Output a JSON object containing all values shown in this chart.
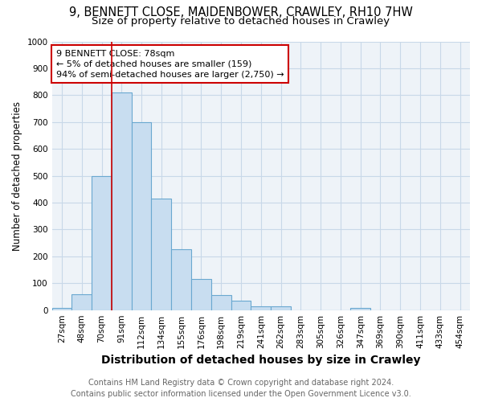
{
  "title_line1": "9, BENNETT CLOSE, MAIDENBOWER, CRAWLEY, RH10 7HW",
  "title_line2": "Size of property relative to detached houses in Crawley",
  "xlabel": "Distribution of detached houses by size in Crawley",
  "ylabel": "Number of detached properties",
  "categories": [
    "27sqm",
    "48sqm",
    "70sqm",
    "91sqm",
    "112sqm",
    "134sqm",
    "155sqm",
    "176sqm",
    "198sqm",
    "219sqm",
    "241sqm",
    "262sqm",
    "283sqm",
    "305sqm",
    "326sqm",
    "347sqm",
    "369sqm",
    "390sqm",
    "411sqm",
    "433sqm",
    "454sqm"
  ],
  "values": [
    8,
    58,
    500,
    810,
    700,
    415,
    225,
    115,
    57,
    35,
    15,
    15,
    0,
    0,
    0,
    8,
    0,
    0,
    0,
    0,
    0
  ],
  "bar_color": "#c8ddf0",
  "bar_edge_color": "#6aa8d0",
  "vline_x_index": 2,
  "vline_color": "#cc0000",
  "annotation_box_text": "9 BENNETT CLOSE: 78sqm\n← 5% of detached houses are smaller (159)\n94% of semi-detached houses are larger (2,750) →",
  "annotation_box_color": "#cc0000",
  "annotation_box_fill": "white",
  "ylim": [
    0,
    1000
  ],
  "yticks": [
    0,
    100,
    200,
    300,
    400,
    500,
    600,
    700,
    800,
    900,
    1000
  ],
  "grid_color": "#c8d8e8",
  "background_color": "#eef3f8",
  "footer_line1": "Contains HM Land Registry data © Crown copyright and database right 2024.",
  "footer_line2": "Contains public sector information licensed under the Open Government Licence v3.0.",
  "title_fontsize": 10.5,
  "subtitle_fontsize": 9.5,
  "xlabel_fontsize": 10,
  "ylabel_fontsize": 8.5,
  "tick_fontsize": 7.5,
  "footer_fontsize": 7
}
